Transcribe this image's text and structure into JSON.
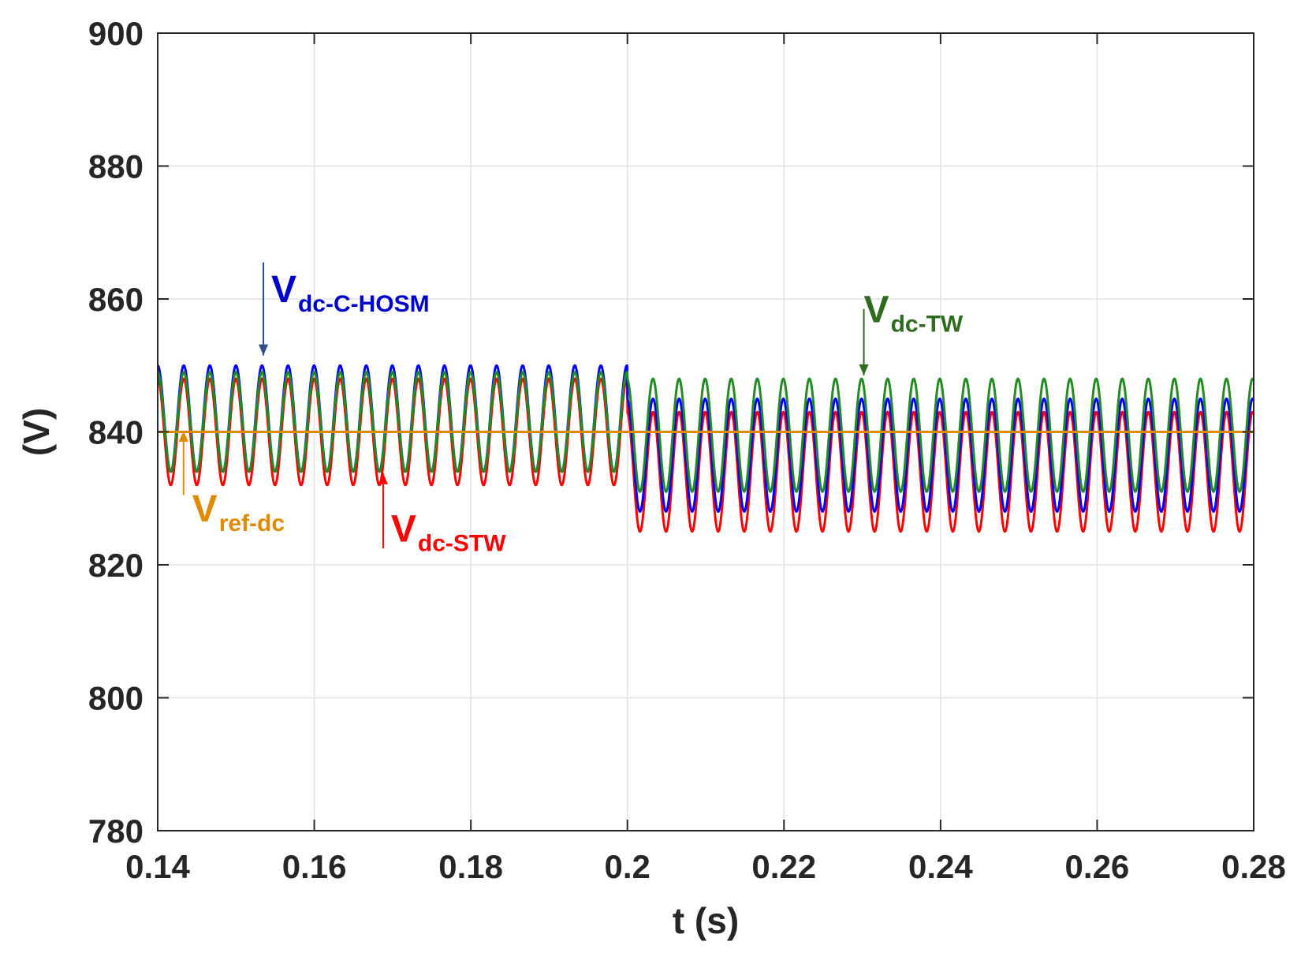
{
  "chart_data": {
    "type": "line",
    "title": "",
    "xlabel": "t (s)",
    "ylabel": "(V)",
    "xlim": [
      0.14,
      0.28
    ],
    "ylim": [
      780,
      900
    ],
    "xticks": [
      0.14,
      0.16,
      0.18,
      0.2,
      0.22,
      0.24,
      0.26,
      0.28
    ],
    "xtick_labels": [
      "0.14",
      "0.16",
      "0.18",
      "0.2",
      "0.22",
      "0.24",
      "0.26",
      "0.28"
    ],
    "yticks": [
      780,
      800,
      820,
      840,
      860,
      880,
      900
    ],
    "ytick_labels": [
      "780",
      "800",
      "820",
      "840",
      "860",
      "880",
      "900"
    ],
    "grid": true,
    "step_time": 0.2,
    "oscillation_period_s": 0.00333,
    "series": [
      {
        "name": "Vdc-C-HOSM",
        "label_main": "V",
        "label_sub": "dc-C-HOSM",
        "color": "#0000ff",
        "before_step": {
          "max": 850,
          "min": 834
        },
        "after_step": {
          "max": 845,
          "min": 828
        }
      },
      {
        "name": "Vdc-TW",
        "label_main": "V",
        "label_sub": "dc-TW",
        "color": "#228b22",
        "before_step": {
          "max": 849,
          "min": 834
        },
        "after_step": {
          "max": 848,
          "min": 831
        }
      },
      {
        "name": "Vdc-STW",
        "label_main": "V",
        "label_sub": "dc-STW",
        "color": "#ff0000",
        "before_step": {
          "max": 848,
          "min": 832
        },
        "after_step": {
          "max": 843,
          "min": 825
        }
      },
      {
        "name": "Vref-dc",
        "label_main": "V",
        "label_sub": "ref-dc",
        "color": "#e08a00",
        "constant": 840
      }
    ],
    "annotations": [
      {
        "series": "Vdc-C-HOSM",
        "color": "#0000cc",
        "arrow_color": "#2e4f8a",
        "arrow_from": [
          0.1535,
          865.5
        ],
        "arrow_to": [
          0.1535,
          851.5
        ],
        "label_pos": [
          0.1545,
          859.5
        ]
      },
      {
        "series": "Vdc-TW",
        "color": "#2e6b1e",
        "arrow_color": "#2e6b1e",
        "arrow_from": [
          0.2302,
          858.5
        ],
        "arrow_to": [
          0.2302,
          848.5
        ],
        "label_pos": [
          0.2302,
          856.5
        ]
      },
      {
        "series": "Vref-dc",
        "color": "#e08a00",
        "arrow_color": "#e08a00",
        "arrow_from": [
          0.1433,
          830.5
        ],
        "arrow_to": [
          0.1433,
          840.2
        ],
        "label_pos": [
          0.1444,
          826.5
        ]
      },
      {
        "series": "Vdc-STW",
        "color": "#ff0000",
        "arrow_color": "#ff0000",
        "arrow_from": [
          0.1688,
          822.5
        ],
        "arrow_to": [
          0.1688,
          833.8
        ],
        "label_pos": [
          0.1698,
          823.5
        ]
      }
    ]
  }
}
